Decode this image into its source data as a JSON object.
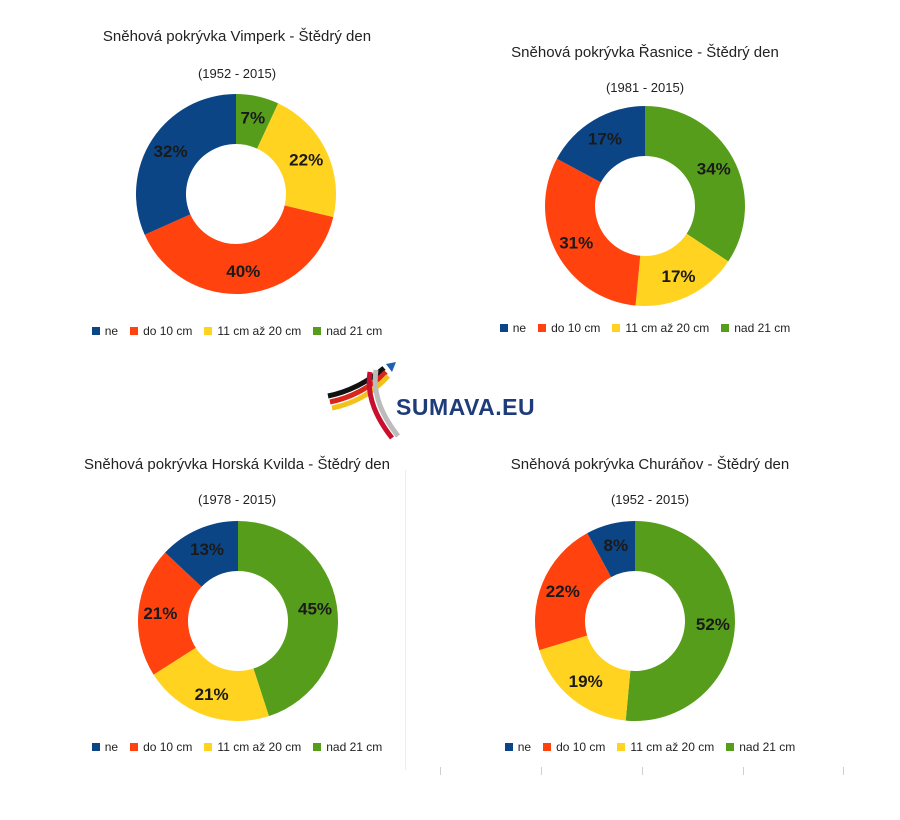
{
  "colors": {
    "ne": "#0c4586",
    "do_10_cm": "#ff420e",
    "11_az_20_cm": "#ffd320",
    "nad_21_cm": "#579d1c"
  },
  "legend": [
    "ne",
    "do 10 cm",
    "11 cm až 20 cm",
    "nad 21 cm"
  ],
  "logo": {
    "text": "SUMAVA.EU"
  },
  "chart_data": [
    {
      "type": "pie",
      "title": "Sněhová pokrývka Vimperk - Štědrý den",
      "subtitle": "(1952 - 2015)",
      "categories": [
        "ne",
        "do 10 cm",
        "11 cm až 20 cm",
        "nad 21 cm"
      ],
      "values": [
        32,
        40,
        22,
        7
      ],
      "labels": [
        "32%",
        "40%",
        "22%",
        "7%"
      ],
      "legend": "bottom"
    },
    {
      "type": "pie",
      "title": "Sněhová pokrývka Řasnice - Štědrý den",
      "subtitle": "(1981 - 2015)",
      "categories": [
        "ne",
        "do 10 cm",
        "11 cm až 20 cm",
        "nad 21 cm"
      ],
      "values": [
        17,
        31,
        17,
        34
      ],
      "labels": [
        "17%",
        "31%",
        "17%",
        "34%"
      ],
      "legend": "bottom"
    },
    {
      "type": "pie",
      "title": "Sněhová pokrývka Horská Kvilda - Štědrý den",
      "subtitle": "(1978 - 2015)",
      "categories": [
        "ne",
        "do 10 cm",
        "11 cm až 20 cm",
        "nad 21 cm"
      ],
      "values": [
        13,
        21,
        21,
        45
      ],
      "labels": [
        "13%",
        "21%",
        "21%",
        "45%"
      ],
      "legend": "bottom"
    },
    {
      "type": "pie",
      "title": "Sněhová pokrývka Churáňov - Štědrý den",
      "subtitle": "(1952 - 2015)",
      "categories": [
        "ne",
        "do 10 cm",
        "11 cm až 20 cm",
        "nad 21 cm"
      ],
      "values": [
        8,
        22,
        19,
        52
      ],
      "labels": [
        "8%",
        "22%",
        "19%",
        "52%"
      ],
      "legend": "bottom"
    }
  ]
}
